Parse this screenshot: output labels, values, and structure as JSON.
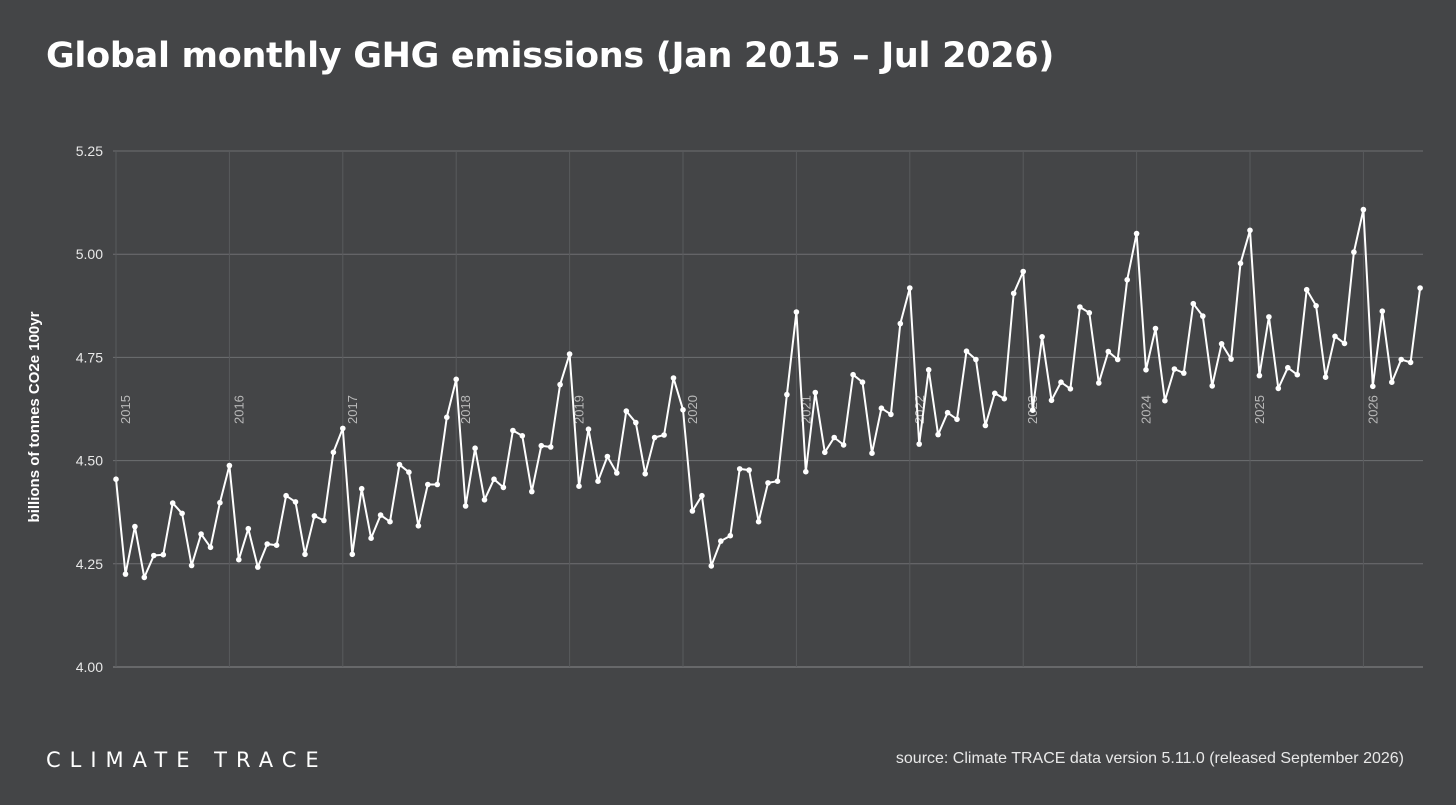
{
  "header": {
    "title": "Global monthly GHG emissions (Jan 2015 – Jul 2026)"
  },
  "footer": {
    "logo_text": "CLIMATE TRACE",
    "source": "source: Climate TRACE data version 5.11.0 (released September 2026)"
  },
  "colors": {
    "background": "#444547",
    "line": "#ffffff",
    "grid": "#6e6f72",
    "year_grid": "#595a5d"
  },
  "chart_data": {
    "type": "line",
    "title": "Global monthly GHG emissions (Jan 2015 – Jul 2026)",
    "xlabel": "",
    "ylabel": "billions of tonnes CO2e 100yr",
    "ylim": [
      4.0,
      5.25
    ],
    "yticks": [
      "4.00",
      "4.25",
      "4.50",
      "4.75",
      "5.00",
      "5.25"
    ],
    "year_labels": [
      "2015",
      "2016",
      "2017",
      "2018",
      "2019",
      "2020",
      "2021",
      "2022",
      "2023",
      "2024",
      "2025",
      "2026"
    ],
    "x_start": "2015-01",
    "x_end": "2026-07",
    "grid": true,
    "legend": "none",
    "series": [
      {
        "x": [
          "2015-01",
          "2015-02",
          "2015-03",
          "2015-04",
          "2015-05",
          "2015-06",
          "2015-07",
          "2015-08",
          "2015-09",
          "2015-10",
          "2015-11",
          "2015-12",
          "2016-01",
          "2016-02",
          "2016-03",
          "2016-04",
          "2016-05",
          "2016-06",
          "2016-07",
          "2016-08",
          "2016-09",
          "2016-10",
          "2016-11",
          "2016-12",
          "2017-01",
          "2017-02",
          "2017-03",
          "2017-04",
          "2017-05",
          "2017-06",
          "2017-07",
          "2017-08",
          "2017-09",
          "2017-10",
          "2017-11",
          "2017-12",
          "2018-01",
          "2018-02",
          "2018-03",
          "2018-04",
          "2018-05",
          "2018-06",
          "2018-07",
          "2018-08",
          "2018-09",
          "2018-10",
          "2018-11",
          "2018-12",
          "2019-01",
          "2019-02",
          "2019-03",
          "2019-04",
          "2019-05",
          "2019-06",
          "2019-07",
          "2019-08",
          "2019-09",
          "2019-10",
          "2019-11",
          "2019-12",
          "2020-01",
          "2020-02",
          "2020-03",
          "2020-04",
          "2020-05",
          "2020-06",
          "2020-07",
          "2020-08",
          "2020-09",
          "2020-10",
          "2020-11",
          "2020-12",
          "2021-01",
          "2021-02",
          "2021-03",
          "2021-04",
          "2021-05",
          "2021-06",
          "2021-07",
          "2021-08",
          "2021-09",
          "2021-10",
          "2021-11",
          "2021-12",
          "2022-01",
          "2022-02",
          "2022-03",
          "2022-04",
          "2022-05",
          "2022-06",
          "2022-07",
          "2022-08",
          "2022-09",
          "2022-10",
          "2022-11",
          "2022-12",
          "2023-01",
          "2023-02",
          "2023-03",
          "2023-04",
          "2023-05",
          "2023-06",
          "2023-07",
          "2023-08",
          "2023-09",
          "2023-10",
          "2023-11",
          "2023-12",
          "2024-01",
          "2024-02",
          "2024-03",
          "2024-04",
          "2024-05",
          "2024-06",
          "2024-07",
          "2024-08",
          "2024-09",
          "2024-10",
          "2024-11",
          "2024-12",
          "2025-01",
          "2025-02",
          "2025-03",
          "2025-04",
          "2025-05",
          "2025-06",
          "2025-07",
          "2025-08",
          "2025-09",
          "2025-10",
          "2025-11",
          "2025-12",
          "2026-01",
          "2026-02",
          "2026-03",
          "2026-04",
          "2026-05",
          "2026-06",
          "2026-07"
        ],
        "values": [
          4.455,
          4.225,
          4.34,
          4.217,
          4.27,
          4.272,
          4.397,
          4.372,
          4.246,
          4.322,
          4.29,
          4.398,
          4.488,
          4.26,
          4.335,
          4.242,
          4.298,
          4.295,
          4.415,
          4.4,
          4.273,
          4.366,
          4.355,
          4.52,
          4.578,
          4.273,
          4.432,
          4.312,
          4.368,
          4.352,
          4.49,
          4.472,
          4.342,
          4.442,
          4.442,
          4.605,
          4.697,
          4.39,
          4.53,
          4.405,
          4.455,
          4.435,
          4.573,
          4.56,
          4.425,
          4.536,
          4.533,
          4.684,
          4.758,
          4.438,
          4.576,
          4.45,
          4.51,
          4.47,
          4.62,
          4.592,
          4.468,
          4.556,
          4.562,
          4.7,
          4.623,
          4.378,
          4.415,
          4.245,
          4.305,
          4.318,
          4.48,
          4.477,
          4.352,
          4.446,
          4.45,
          4.66,
          4.86,
          4.473,
          4.665,
          4.52,
          4.556,
          4.538,
          4.708,
          4.69,
          4.518,
          4.627,
          4.612,
          4.832,
          4.918,
          4.54,
          4.72,
          4.563,
          4.616,
          4.6,
          4.765,
          4.745,
          4.585,
          4.663,
          4.65,
          4.905,
          4.958,
          4.622,
          4.8,
          4.646,
          4.69,
          4.674,
          4.872,
          4.858,
          4.688,
          4.764,
          4.745,
          4.938,
          5.05,
          4.72,
          4.82,
          4.645,
          4.722,
          4.712,
          4.88,
          4.85,
          4.681,
          4.783,
          4.746,
          4.978,
          5.058,
          4.706,
          4.848,
          4.675,
          4.725,
          4.708,
          4.914,
          4.875,
          4.702,
          4.801,
          4.784,
          5.005,
          5.108,
          4.68,
          4.862,
          4.69,
          4.745,
          4.738,
          4.918
        ]
      }
    ]
  }
}
